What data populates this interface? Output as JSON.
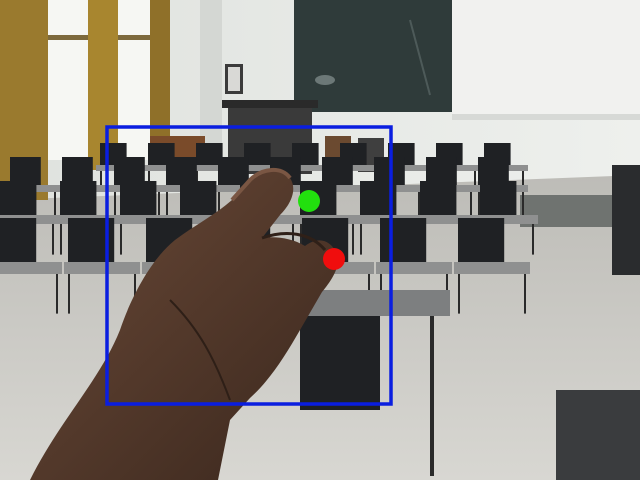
{
  "scene": {
    "description_colors": {
      "wall": "#e9ebe8",
      "floor": "#c9c8c3",
      "chalkboard": "#2f3b3a",
      "screen": "#f1f1ef",
      "curtain": "#9a7a2e",
      "window": "#f7f8f4",
      "chair": "#1f2124",
      "desk_top": "#8f9090",
      "skin": "#5b4032",
      "skin_dark": "#3e2a20"
    }
  },
  "overlay": {
    "box_color": "#0a1ee0",
    "tip_colors": {
      "green": "#22e00e",
      "red": "#f00d0d"
    }
  }
}
